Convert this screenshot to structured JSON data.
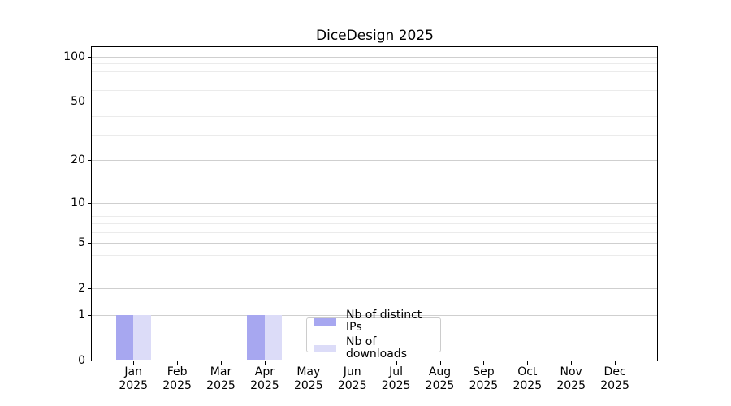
{
  "chart_data": {
    "type": "bar",
    "title": "DiceDesign 2025",
    "categories": [
      "Jan",
      "Feb",
      "Mar",
      "Apr",
      "May",
      "Jun",
      "Jul",
      "Aug",
      "Sep",
      "Oct",
      "Nov",
      "Dec"
    ],
    "x_tick_year_line": "2025",
    "series": [
      {
        "name": "Nb of distinct IPs",
        "color": "#a7a7f0",
        "values": [
          1,
          0,
          0,
          1,
          0,
          0,
          0,
          0,
          0,
          0,
          0,
          0
        ]
      },
      {
        "name": "Nb of downloads",
        "color": "#dcdcf8",
        "values": [
          1,
          0,
          0,
          1,
          0,
          0,
          0,
          0,
          0,
          0,
          0,
          0
        ]
      }
    ],
    "yscale": "log1p",
    "y_major_ticks": [
      0,
      1,
      2,
      5,
      10,
      20,
      50,
      100
    ],
    "y_minor_ticks": [
      3,
      4,
      6,
      7,
      8,
      9,
      30,
      40,
      60,
      70,
      80,
      90
    ],
    "ylim": [
      0,
      116
    ],
    "xlabel": "",
    "ylabel": "",
    "grid": true,
    "legend_position": "lower center",
    "colors": {
      "grid_major": "#cfcfcf",
      "grid_minor": "#ebebeb",
      "spine": "#000000",
      "legend_border": "#cccccc",
      "background": "#ffffff"
    }
  }
}
